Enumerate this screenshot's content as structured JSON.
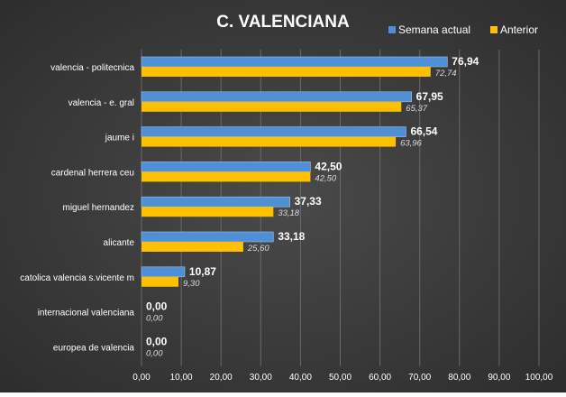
{
  "chart_data": {
    "type": "bar",
    "orientation": "horizontal",
    "title": "C. VALENCIANA",
    "categories": [
      "valencia - politecnica",
      "valencia - e. gral",
      "jaume i",
      "cardenal herrera ceu",
      "miguel hernandez",
      "alicante",
      "catolica valencia s.vicente m",
      "internacional valenciana",
      "europea de valencia"
    ],
    "series": [
      {
        "name": "Semana actual",
        "color": "#4e8fd6",
        "values": [
          76.94,
          67.95,
          66.54,
          42.5,
          37.33,
          33.18,
          10.87,
          0.0,
          0.0
        ],
        "labels": [
          "76,94",
          "67,95",
          "66,54",
          "42,50",
          "37,33",
          "33,18",
          "10,87",
          "0,00",
          "0,00"
        ]
      },
      {
        "name": "Anterior",
        "color": "#ffc000",
        "values": [
          72.74,
          65.37,
          63.96,
          42.5,
          33.18,
          25.6,
          9.3,
          0.0,
          0.0
        ],
        "labels": [
          "72,74",
          "65,37",
          "63,96",
          "42,50",
          "33,18",
          "25,60",
          "9,30",
          "0,00",
          "0,00"
        ]
      }
    ],
    "xlim": [
      0,
      100
    ],
    "x_ticks": [
      "0,00",
      "10,00",
      "20,00",
      "30,00",
      "40,00",
      "50,00",
      "60,00",
      "70,00",
      "80,00",
      "90,00",
      "100,00"
    ],
    "grid": true,
    "legend_position": "top-right",
    "background": "#404040",
    "text_color": "#ffffff"
  }
}
